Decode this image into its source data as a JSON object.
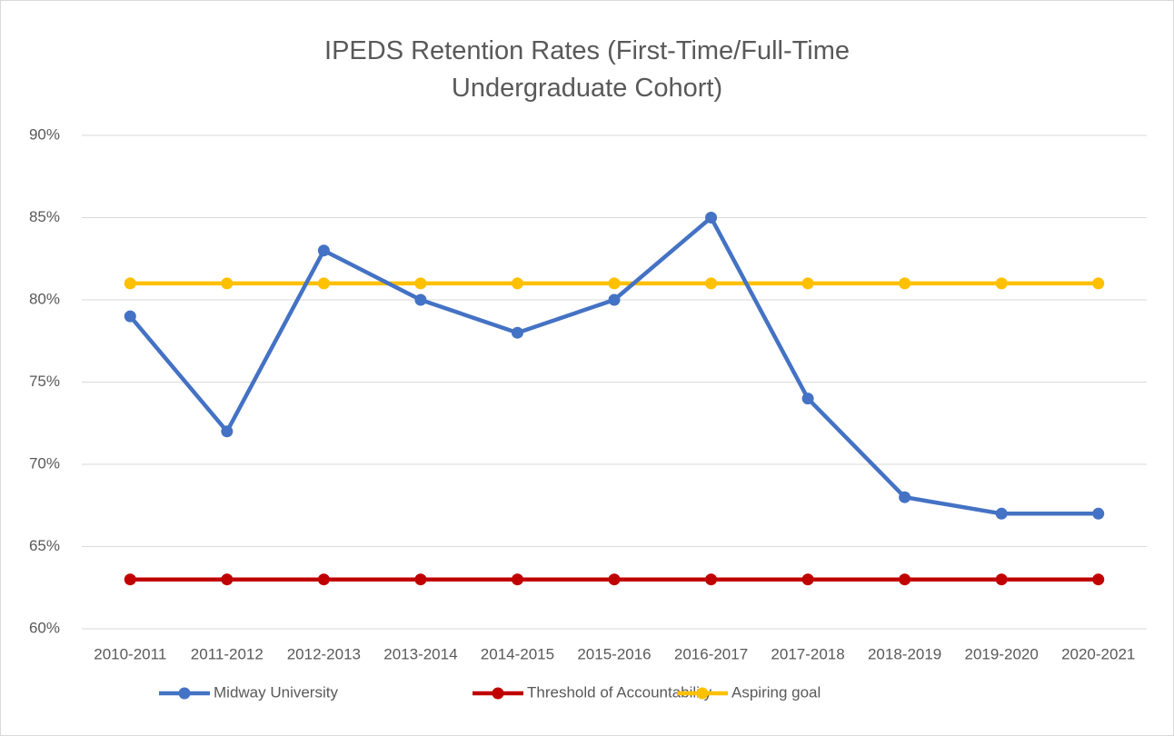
{
  "chart_data": {
    "type": "line",
    "title": "IPEDS Retention Rates (First-Time/Full-Time Undergraduate Cohort)",
    "categories": [
      "2010-2011",
      "2011-2012",
      "2012-2013",
      "2013-2014",
      "2014-2015",
      "2015-2016",
      "2016-2017",
      "2017-2018",
      "2018-2019",
      "2019-2020",
      "2020-2021"
    ],
    "series": [
      {
        "name": "Midway University",
        "color": "#4472c4",
        "values": [
          79,
          72,
          83,
          80,
          78,
          80,
          85,
          74,
          68,
          67,
          67
        ]
      },
      {
        "name": "Threshold of Accountability",
        "color": "#c00000",
        "values": [
          63,
          63,
          63,
          63,
          63,
          63,
          63,
          63,
          63,
          63,
          63
        ]
      },
      {
        "name": "Aspiring goal",
        "color": "#ffc000",
        "values": [
          81,
          81,
          81,
          81,
          81,
          81,
          81,
          81,
          81,
          81,
          81
        ]
      }
    ],
    "ylim": [
      60,
      90
    ],
    "yticks": [
      {
        "value": 60,
        "label": "60%"
      },
      {
        "value": 65,
        "label": "65%"
      },
      {
        "value": 70,
        "label": "70%"
      },
      {
        "value": 75,
        "label": "75%"
      },
      {
        "value": 80,
        "label": "80%"
      },
      {
        "value": 85,
        "label": "85%"
      },
      {
        "value": 90,
        "label": "90%"
      }
    ],
    "grid": true,
    "legend": "bottom"
  }
}
